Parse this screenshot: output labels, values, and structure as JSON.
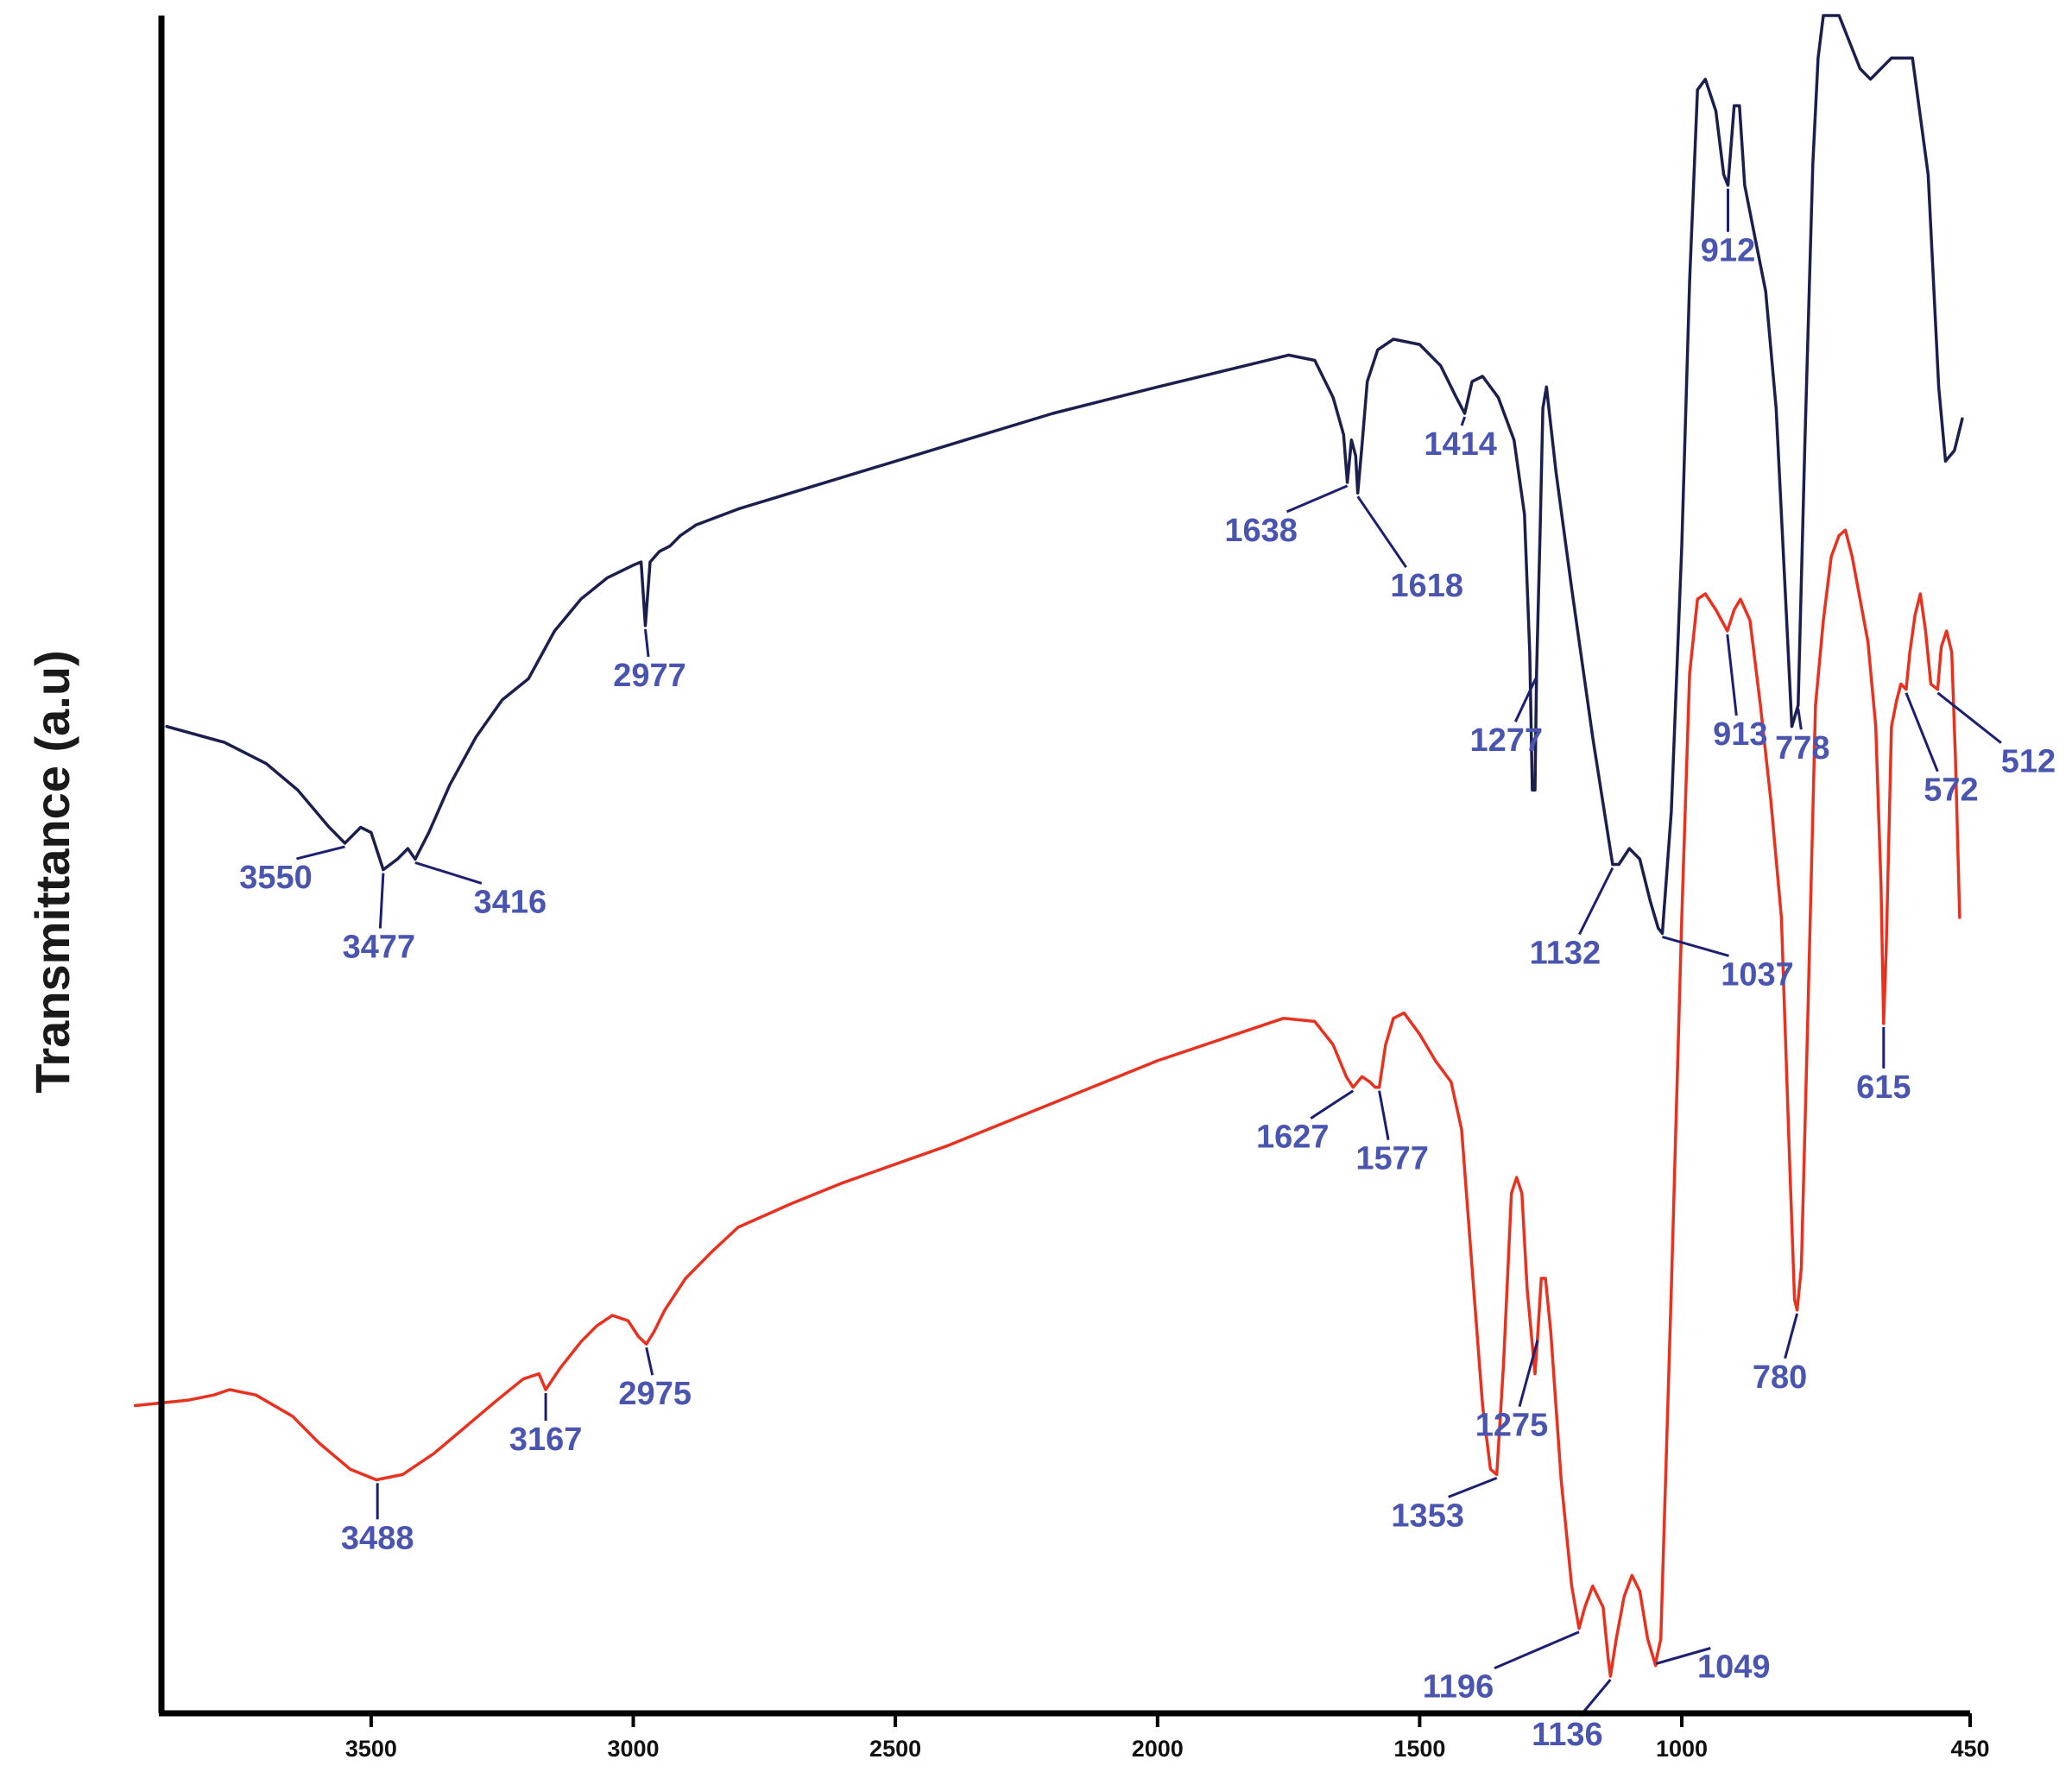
{
  "chart_data": {
    "type": "line",
    "title": "",
    "xlabel": "",
    "ylabel": "Transmittance (a.u)",
    "x_reversed": true,
    "xlim": [
      3900,
      450
    ],
    "x_ticks": [
      3500,
      3000,
      2500,
      2000,
      1500,
      1000,
      450
    ],
    "grid": false,
    "legend": "none",
    "series": [
      {
        "color": "#1b1f4e",
        "points": [
          [
            3890,
            9.3
          ],
          [
            3780,
            9.15
          ],
          [
            3700,
            8.95
          ],
          [
            3640,
            8.7
          ],
          [
            3580,
            8.35
          ],
          [
            3550,
            8.2
          ],
          [
            3520,
            8.35
          ],
          [
            3500,
            8.3
          ],
          [
            3477,
            7.95
          ],
          [
            3450,
            8.05
          ],
          [
            3430,
            8.15
          ],
          [
            3416,
            8.05
          ],
          [
            3390,
            8.3
          ],
          [
            3350,
            8.75
          ],
          [
            3300,
            9.2
          ],
          [
            3250,
            9.55
          ],
          [
            3200,
            9.75
          ],
          [
            3150,
            10.2
          ],
          [
            3100,
            10.5
          ],
          [
            3050,
            10.7
          ],
          [
            3000,
            10.82
          ],
          [
            2985,
            10.85
          ],
          [
            2977,
            10.25
          ],
          [
            2968,
            10.85
          ],
          [
            2950,
            10.95
          ],
          [
            2930,
            11.0
          ],
          [
            2910,
            11.1
          ],
          [
            2880,
            11.2
          ],
          [
            2800,
            11.35
          ],
          [
            2600,
            11.65
          ],
          [
            2400,
            11.95
          ],
          [
            2200,
            12.25
          ],
          [
            2000,
            12.5
          ],
          [
            1850,
            12.68
          ],
          [
            1750,
            12.8
          ],
          [
            1700,
            12.75
          ],
          [
            1665,
            12.4
          ],
          [
            1645,
            12.05
          ],
          [
            1638,
            11.6
          ],
          [
            1630,
            12.0
          ],
          [
            1622,
            11.85
          ],
          [
            1618,
            11.5
          ],
          [
            1610,
            11.95
          ],
          [
            1600,
            12.55
          ],
          [
            1580,
            12.85
          ],
          [
            1550,
            12.95
          ],
          [
            1500,
            12.9
          ],
          [
            1460,
            12.7
          ],
          [
            1430,
            12.4
          ],
          [
            1414,
            12.25
          ],
          [
            1400,
            12.55
          ],
          [
            1380,
            12.6
          ],
          [
            1350,
            12.4
          ],
          [
            1320,
            12.0
          ],
          [
            1300,
            11.3
          ],
          [
            1290,
            10.0
          ],
          [
            1285,
            8.7
          ],
          [
            1280,
            8.7
          ],
          [
            1277,
            9.8
          ],
          [
            1270,
            11.2
          ],
          [
            1265,
            12.3
          ],
          [
            1258,
            12.5
          ],
          [
            1240,
            11.7
          ],
          [
            1210,
            10.6
          ],
          [
            1170,
            9.2
          ],
          [
            1132,
            8.0
          ],
          [
            1120,
            8.0
          ],
          [
            1100,
            8.15
          ],
          [
            1080,
            8.05
          ],
          [
            1060,
            7.65
          ],
          [
            1045,
            7.4
          ],
          [
            1037,
            7.35
          ],
          [
            1020,
            8.5
          ],
          [
            1000,
            11.0
          ],
          [
            985,
            13.5
          ],
          [
            970,
            15.3
          ],
          [
            955,
            15.4
          ],
          [
            935,
            15.1
          ],
          [
            920,
            14.5
          ],
          [
            912,
            14.4
          ],
          [
            900,
            15.15
          ],
          [
            890,
            15.15
          ],
          [
            880,
            14.4
          ],
          [
            860,
            13.9
          ],
          [
            840,
            13.4
          ],
          [
            820,
            12.3
          ],
          [
            800,
            10.3
          ],
          [
            790,
            9.3
          ],
          [
            778,
            9.5
          ],
          [
            765,
            12.0
          ],
          [
            750,
            14.6
          ],
          [
            740,
            15.6
          ],
          [
            730,
            16.0
          ],
          [
            700,
            16.0
          ],
          [
            660,
            15.5
          ],
          [
            640,
            15.4
          ],
          [
            600,
            15.6
          ],
          [
            560,
            15.6
          ],
          [
            530,
            14.5
          ],
          [
            510,
            12.5
          ],
          [
            497,
            11.8
          ],
          [
            480,
            11.9
          ],
          [
            465,
            12.2
          ]
        ]
      },
      {
        "color": "#e8311e",
        "points": [
          [
            3950,
            2.9
          ],
          [
            3850,
            2.95
          ],
          [
            3800,
            3.0
          ],
          [
            3770,
            3.05
          ],
          [
            3720,
            3.0
          ],
          [
            3650,
            2.8
          ],
          [
            3600,
            2.55
          ],
          [
            3540,
            2.3
          ],
          [
            3490,
            2.2
          ],
          [
            3440,
            2.25
          ],
          [
            3380,
            2.45
          ],
          [
            3320,
            2.7
          ],
          [
            3260,
            2.95
          ],
          [
            3210,
            3.15
          ],
          [
            3180,
            3.2
          ],
          [
            3167,
            3.05
          ],
          [
            3140,
            3.25
          ],
          [
            3100,
            3.5
          ],
          [
            3070,
            3.65
          ],
          [
            3040,
            3.75
          ],
          [
            3010,
            3.7
          ],
          [
            2990,
            3.55
          ],
          [
            2975,
            3.48
          ],
          [
            2960,
            3.6
          ],
          [
            2940,
            3.8
          ],
          [
            2900,
            4.1
          ],
          [
            2850,
            4.35
          ],
          [
            2800,
            4.58
          ],
          [
            2700,
            4.8
          ],
          [
            2600,
            5.0
          ],
          [
            2400,
            5.35
          ],
          [
            2200,
            5.75
          ],
          [
            2000,
            6.15
          ],
          [
            1850,
            6.4
          ],
          [
            1760,
            6.55
          ],
          [
            1700,
            6.52
          ],
          [
            1665,
            6.3
          ],
          [
            1640,
            6.0
          ],
          [
            1627,
            5.9
          ],
          [
            1610,
            6.0
          ],
          [
            1595,
            5.95
          ],
          [
            1585,
            5.9
          ],
          [
            1577,
            5.9
          ],
          [
            1565,
            6.3
          ],
          [
            1550,
            6.55
          ],
          [
            1530,
            6.6
          ],
          [
            1500,
            6.4
          ],
          [
            1470,
            6.15
          ],
          [
            1440,
            5.95
          ],
          [
            1420,
            5.5
          ],
          [
            1400,
            4.2
          ],
          [
            1380,
            2.9
          ],
          [
            1365,
            2.3
          ],
          [
            1353,
            2.25
          ],
          [
            1340,
            3.3
          ],
          [
            1325,
            4.9
          ],
          [
            1315,
            5.05
          ],
          [
            1305,
            4.9
          ],
          [
            1295,
            4.0
          ],
          [
            1280,
            3.2
          ],
          [
            1275,
            3.55
          ],
          [
            1268,
            4.1
          ],
          [
            1260,
            4.1
          ],
          [
            1250,
            3.6
          ],
          [
            1230,
            2.2
          ],
          [
            1210,
            1.2
          ],
          [
            1196,
            0.8
          ],
          [
            1185,
            1.0
          ],
          [
            1170,
            1.2
          ],
          [
            1150,
            1.0
          ],
          [
            1140,
            0.5
          ],
          [
            1136,
            0.35
          ],
          [
            1125,
            0.7
          ],
          [
            1110,
            1.1
          ],
          [
            1095,
            1.3
          ],
          [
            1080,
            1.15
          ],
          [
            1065,
            0.7
          ],
          [
            1050,
            0.45
          ],
          [
            1049,
            0.5
          ],
          [
            1040,
            0.7
          ],
          [
            1020,
            4.0
          ],
          [
            1000,
            7.5
          ],
          [
            985,
            9.8
          ],
          [
            970,
            10.5
          ],
          [
            955,
            10.55
          ],
          [
            935,
            10.4
          ],
          [
            913,
            10.2
          ],
          [
            900,
            10.4
          ],
          [
            888,
            10.5
          ],
          [
            870,
            10.3
          ],
          [
            850,
            9.5
          ],
          [
            830,
            8.6
          ],
          [
            810,
            7.5
          ],
          [
            795,
            5.3
          ],
          [
            785,
            3.9
          ],
          [
            780,
            3.8
          ],
          [
            772,
            4.2
          ],
          [
            760,
            6.5
          ],
          [
            745,
            9.5
          ],
          [
            730,
            10.3
          ],
          [
            715,
            10.9
          ],
          [
            700,
            11.1
          ],
          [
            688,
            11.15
          ],
          [
            675,
            10.9
          ],
          [
            660,
            10.5
          ],
          [
            645,
            10.1
          ],
          [
            630,
            9.3
          ],
          [
            620,
            7.8
          ],
          [
            615,
            6.5
          ],
          [
            610,
            7.2
          ],
          [
            600,
            9.3
          ],
          [
            590,
            9.55
          ],
          [
            582,
            9.7
          ],
          [
            572,
            9.65
          ],
          [
            565,
            10.0
          ],
          [
            555,
            10.35
          ],
          [
            545,
            10.55
          ],
          [
            535,
            10.2
          ],
          [
            525,
            9.7
          ],
          [
            512,
            9.65
          ],
          [
            505,
            10.05
          ],
          [
            495,
            10.2
          ],
          [
            485,
            10.0
          ],
          [
            478,
            9.0
          ],
          [
            470,
            7.5
          ]
        ]
      }
    ],
    "peak_labels": [
      {
        "series": 0,
        "text": "3550",
        "x": 3550
      },
      {
        "series": 0,
        "text": "3477",
        "x": 3477
      },
      {
        "series": 0,
        "text": "3416",
        "x": 3416
      },
      {
        "series": 0,
        "text": "2977",
        "x": 2977
      },
      {
        "series": 0,
        "text": "1638",
        "x": 1638
      },
      {
        "series": 0,
        "text": "1618",
        "x": 1618
      },
      {
        "series": 0,
        "text": "1414",
        "x": 1414
      },
      {
        "series": 0,
        "text": "1277",
        "x": 1277
      },
      {
        "series": 0,
        "text": "1132",
        "x": 1132
      },
      {
        "series": 0,
        "text": "1037",
        "x": 1037
      },
      {
        "series": 0,
        "text": "912",
        "x": 912
      },
      {
        "series": 0,
        "text": "778",
        "x": 778
      },
      {
        "series": 1,
        "text": "3488",
        "x": 3488
      },
      {
        "series": 1,
        "text": "3167",
        "x": 3167
      },
      {
        "series": 1,
        "text": "2975",
        "x": 2975
      },
      {
        "series": 1,
        "text": "1627",
        "x": 1627
      },
      {
        "series": 1,
        "text": "1577",
        "x": 1577
      },
      {
        "series": 1,
        "text": "1353",
        "x": 1353
      },
      {
        "series": 1,
        "text": "1275",
        "x": 1275
      },
      {
        "series": 1,
        "text": "1196",
        "x": 1196
      },
      {
        "series": 1,
        "text": "1136",
        "x": 1136
      },
      {
        "series": 1,
        "text": "1049",
        "x": 1049
      },
      {
        "series": 1,
        "text": "913",
        "x": 913
      },
      {
        "series": 1,
        "text": "780",
        "x": 780
      },
      {
        "series": 1,
        "text": "615",
        "x": 615
      },
      {
        "series": 1,
        "text": "572",
        "x": 572
      },
      {
        "series": 1,
        "text": "512",
        "x": 512
      }
    ],
    "label_color": "#4a55b0",
    "leader_color": "#1b2070"
  }
}
